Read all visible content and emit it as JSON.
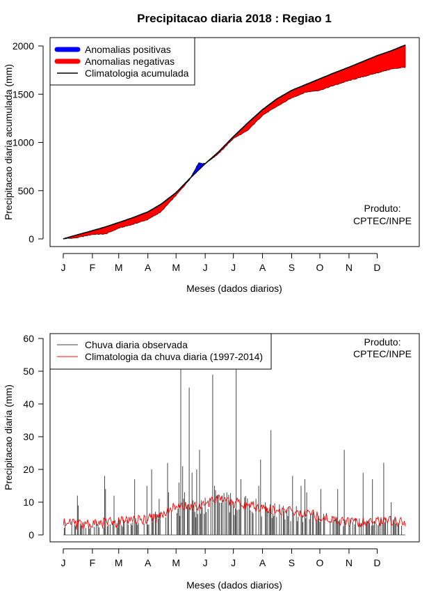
{
  "title": "Precipitacao diaria 2018 : Regiao 1",
  "chart_data": [
    {
      "type": "area",
      "ylabel": "Precipitacao diaria acumulada (mm)",
      "xlabel": "Meses (dados diarios)",
      "x_tick_labels": [
        "J",
        "F",
        "M",
        "A",
        "M",
        "J",
        "J",
        "A",
        "S",
        "O",
        "N",
        "D"
      ],
      "x_tick_days": [
        1,
        32,
        60,
        91,
        121,
        152,
        182,
        213,
        244,
        274,
        305,
        335
      ],
      "xlim": [
        1,
        365
      ],
      "ylim": [
        0,
        2000
      ],
      "y_ticks": [
        0,
        500,
        1000,
        1500,
        2000
      ],
      "legend": [
        {
          "label": "Anomalias positivas",
          "color": "#0000ff"
        },
        {
          "label": "Anomalias negativas",
          "color": "#ff0000"
        },
        {
          "label": "Climatologia acumulada",
          "color": "#000000"
        }
      ],
      "note": [
        "Produto:",
        "CPTEC/INPE"
      ],
      "climatology_cumulative": {
        "day": [
          1,
          15,
          32,
          46,
          60,
          75,
          91,
          105,
          121,
          135,
          152,
          166,
          182,
          197,
          213,
          228,
          244,
          259,
          274,
          289,
          305,
          320,
          335,
          350,
          365
        ],
        "mm": [
          0,
          40,
          85,
          125,
          170,
          220,
          280,
          360,
          480,
          620,
          780,
          900,
          1060,
          1200,
          1340,
          1450,
          1540,
          1600,
          1660,
          1720,
          1780,
          1840,
          1900,
          1950,
          2010
        ]
      },
      "observed_cumulative": {
        "day": [
          1,
          15,
          32,
          46,
          60,
          75,
          91,
          105,
          121,
          135,
          145,
          152,
          166,
          182,
          197,
          213,
          228,
          244,
          259,
          274,
          289,
          305,
          320,
          335,
          350,
          365
        ],
        "mm": [
          0,
          10,
          45,
          50,
          110,
          150,
          200,
          280,
          450,
          610,
          790,
          780,
          880,
          1040,
          1120,
          1280,
          1370,
          1460,
          1520,
          1540,
          1590,
          1640,
          1680,
          1720,
          1760,
          1780
        ]
      }
    },
    {
      "type": "bar",
      "ylabel": "Precipitacao diaria (mm)",
      "xlabel": "Meses (dados diarios)",
      "x_tick_labels": [
        "J",
        "F",
        "M",
        "A",
        "M",
        "J",
        "J",
        "A",
        "S",
        "O",
        "N",
        "D"
      ],
      "x_tick_days": [
        1,
        32,
        60,
        91,
        121,
        152,
        182,
        213,
        244,
        274,
        305,
        335
      ],
      "xlim": [
        1,
        365
      ],
      "ylim": [
        0,
        60
      ],
      "y_ticks": [
        0,
        10,
        20,
        30,
        40,
        50,
        60
      ],
      "legend": [
        {
          "label": "Chuva diaria observada",
          "color": "#404040"
        },
        {
          "label": "Climatologia da chuva diaria (1997-2014)",
          "color": "#ff0000"
        }
      ],
      "note": [
        "Produto:",
        "CPTEC/INPE"
      ],
      "climatology_daily": {
        "day": [
          1,
          20,
          40,
          60,
          80,
          100,
          115,
          130,
          150,
          165,
          182,
          200,
          215,
          230,
          245,
          260,
          275,
          290,
          305,
          320,
          335,
          350,
          365
        ],
        "mm": [
          3.5,
          3,
          3.5,
          4,
          4.5,
          5.5,
          8,
          9,
          9,
          11,
          10,
          9,
          8,
          7.5,
          7,
          6.5,
          5.5,
          4.5,
          4,
          4,
          4,
          4.5,
          3.5
        ]
      },
      "observed_daily_peaks": {
        "day": [
          3,
          16,
          17,
          45,
          46,
          55,
          77,
          90,
          95,
          103,
          112,
          113,
          124,
          126,
          128,
          130,
          138,
          135,
          143,
          146,
          160,
          162,
          170,
          175,
          185,
          190,
          206,
          209,
          211,
          222,
          245,
          254,
          258,
          260,
          275,
          293,
          300,
          320,
          330,
          342,
          350
        ],
        "mm": [
          4,
          12,
          9,
          18,
          14,
          12,
          17,
          15,
          20,
          11,
          22,
          13,
          16,
          60,
          21,
          13,
          19,
          45,
          20,
          26,
          49,
          15,
          12,
          13,
          60,
          17,
          11,
          15,
          23,
          32,
          18,
          15,
          17,
          13,
          14,
          14,
          26,
          19,
          17,
          22,
          10
        ]
      }
    }
  ]
}
